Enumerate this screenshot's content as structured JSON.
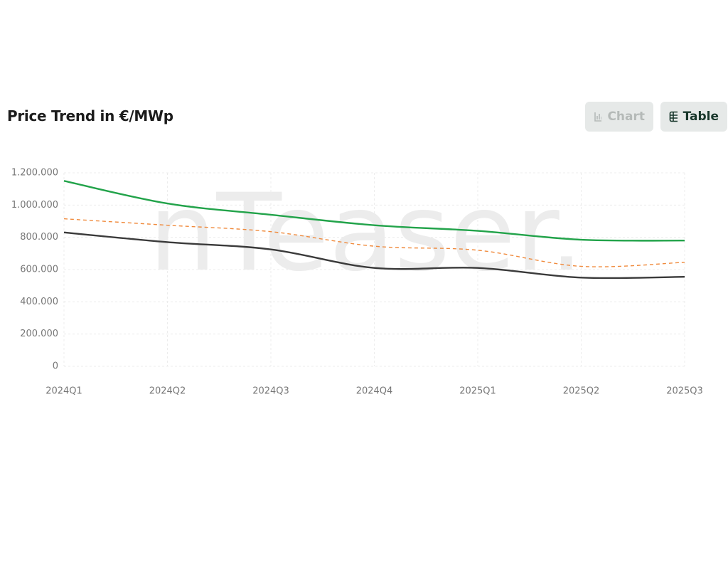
{
  "header": {
    "title": "Price Trend in €/MWp",
    "buttons": [
      "Chart",
      "Table"
    ]
  },
  "watermark": "nTeaser.",
  "chart_data": {
    "type": "line",
    "categories": [
      "2024Q1",
      "2024Q2",
      "2024Q3",
      "2024Q4",
      "2025Q1",
      "2025Q2",
      "2025Q3"
    ],
    "series": [
      {
        "color": "#22a34a",
        "dashed": false,
        "values": [
          1150000,
          1010000,
          940000,
          875000,
          840000,
          785000,
          780000
        ]
      },
      {
        "color": "#f08a3c",
        "dashed": true,
        "values": [
          915000,
          875000,
          835000,
          745000,
          720000,
          620000,
          645000
        ]
      },
      {
        "color": "#3a3a3a",
        "dashed": false,
        "values": [
          830000,
          770000,
          725000,
          610000,
          610000,
          550000,
          555000
        ]
      }
    ],
    "ylim": [
      0,
      1200000
    ],
    "yticks": [
      0,
      {
        "value": 200000,
        "label": "200.000"
      },
      {
        "value": 400000,
        "label": "400.000"
      },
      {
        "value": 600000,
        "label": "600.000"
      },
      {
        "value": 800000,
        "label": "800.000"
      },
      {
        "value": 1000000,
        "label": "1.000.000"
      },
      {
        "value": 1200000,
        "label": "1.200.000"
      }
    ],
    "grid": true,
    "smooth": true
  }
}
